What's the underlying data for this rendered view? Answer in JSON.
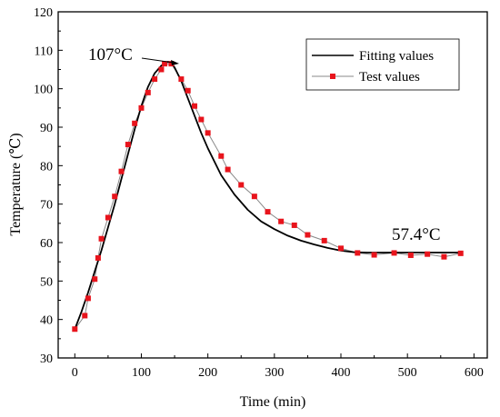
{
  "chart_data": {
    "type": "line",
    "xlabel": "Time (min)",
    "ylabel": "Temperature (℃)",
    "xlim": [
      -25,
      620
    ],
    "ylim": [
      30,
      120
    ],
    "xticks": [
      0,
      100,
      200,
      300,
      400,
      500,
      600
    ],
    "yticks": [
      30,
      40,
      50,
      60,
      70,
      80,
      90,
      100,
      110,
      120
    ],
    "grid": false,
    "legend_position": "top-right",
    "legend": [
      "Fitting values",
      "Test values"
    ],
    "annotations": [
      {
        "text": "107°C",
        "x": 143,
        "y": 107
      },
      {
        "text": "57.4°C",
        "x": 580,
        "y": 57.4
      }
    ],
    "series": [
      {
        "name": "Fitting values",
        "color": "#000000",
        "marker": "none",
        "x": [
          0,
          10,
          20,
          30,
          40,
          50,
          60,
          70,
          80,
          90,
          100,
          110,
          120,
          130,
          140,
          145,
          150,
          160,
          170,
          180,
          190,
          200,
          220,
          240,
          260,
          280,
          300,
          320,
          340,
          360,
          380,
          400,
          420,
          440,
          460,
          480,
          500,
          520,
          540,
          560,
          580
        ],
        "y": [
          37.5,
          42,
          47,
          52.5,
          58,
          64,
          70,
          76.5,
          83,
          89.5,
          95.5,
          100.5,
          104,
          106,
          107,
          106.8,
          105.5,
          102,
          97.5,
          93,
          88.5,
          84.5,
          77.5,
          72.5,
          68.5,
          65.5,
          63.5,
          61.8,
          60.5,
          59.5,
          58.6,
          57.9,
          57.5,
          57.4,
          57.4,
          57.4,
          57.4,
          57.4,
          57.4,
          57.4,
          57.4
        ]
      },
      {
        "name": "Test values",
        "color": "#e8141c",
        "line_color": "#888888",
        "marker": "square",
        "x": [
          0,
          15,
          20,
          30,
          35,
          40,
          50,
          60,
          70,
          80,
          90,
          100,
          110,
          120,
          130,
          135,
          145,
          160,
          170,
          180,
          190,
          200,
          220,
          230,
          250,
          270,
          290,
          310,
          330,
          350,
          375,
          400,
          425,
          450,
          480,
          505,
          530,
          555,
          580
        ],
        "y": [
          37.5,
          41,
          45.5,
          50.5,
          56,
          61,
          66.5,
          72,
          78.5,
          85.5,
          91,
          95,
          99,
          102.5,
          105,
          106.5,
          106.5,
          102.5,
          99.5,
          95.5,
          92,
          88.5,
          82.5,
          79,
          75,
          72,
          68,
          65.5,
          64.5,
          62,
          60.5,
          58.5,
          57.3,
          56.8,
          57.3,
          56.7,
          57,
          56.3,
          57.2
        ]
      }
    ]
  }
}
